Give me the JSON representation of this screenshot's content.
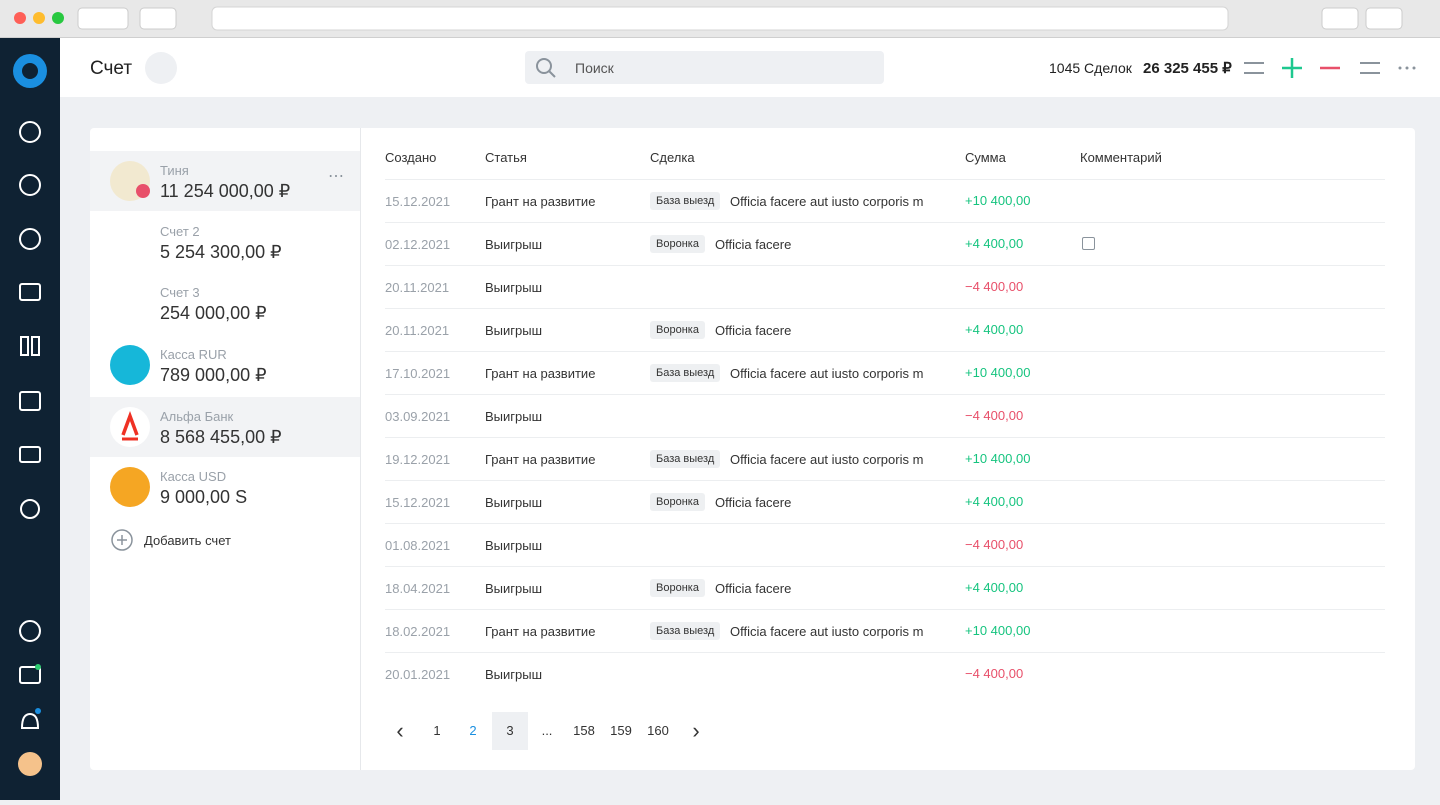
{
  "header": {
    "title": "Счет",
    "search_placeholder": "Поиск",
    "deals": "1045 Сделок",
    "total": "26 325 455 ₽"
  },
  "accounts": [
    {
      "name": "Тиня",
      "amount": "11 254 000,00 ₽"
    },
    {
      "name": "Счет 2",
      "amount": "5 254 300,00 ₽"
    },
    {
      "name": "Счет 3",
      "amount": "254 000,00 ₽"
    },
    {
      "name": "Касса RUR",
      "amount": "789 000,00 ₽"
    },
    {
      "name": "Альфа Банк",
      "amount": "8 568 455,00 ₽"
    },
    {
      "name": "Касса USD",
      "amount": "9 000,00 S"
    }
  ],
  "add_account": "Добавить счет",
  "table": {
    "columns": [
      "Создано",
      "Статья",
      "Сделка",
      "Сумма",
      "Комментарий"
    ],
    "rows": [
      {
        "date": "15.12.2021",
        "article": "Грант на развитие",
        "tag": "База выезд",
        "deal": "Officia facere aut iusto corporis m",
        "amount": "+10 400,00"
      },
      {
        "date": "02.12.2021",
        "article": "Выигрыш",
        "tag": "Воронка",
        "deal": "Officia facere",
        "amount": "+4 400,00"
      },
      {
        "date": "20.11.2021",
        "article": "Выигрыш",
        "amount": "−4 400,00"
      },
      {
        "date": "20.11.2021",
        "article": "Выигрыш",
        "tag": "Воронка",
        "deal": "Officia facere",
        "amount": "+4 400,00"
      },
      {
        "date": "17.10.2021",
        "article": "Грант на развитие",
        "tag": "База выезд",
        "deal": "Officia facere aut iusto corporis m",
        "amount": "+10 400,00"
      },
      {
        "date": "03.09.2021",
        "article": "Выигрыш",
        "amount": "−4 400,00"
      },
      {
        "date": "19.12.2021",
        "article": "Грант на развитие",
        "tag": "База выезд",
        "deal": "Officia facere aut iusto corporis m",
        "amount": "+10 400,00"
      },
      {
        "date": "15.12.2021",
        "article": "Выигрыш",
        "tag": "Воронка",
        "deal": "Officia facere",
        "amount": "+4 400,00"
      },
      {
        "date": "01.08.2021",
        "article": "Выигрыш",
        "amount": "−4 400,00"
      },
      {
        "date": "18.04.2021",
        "article": "Выигрыш",
        "tag": "Воронка",
        "deal": "Officia facere",
        "amount": "+4 400,00"
      },
      {
        "date": "18.02.2021",
        "article": "Грант на развитие",
        "tag": "База выезд",
        "deal": "Officia facere aut iusto corporis m",
        "amount": "+10 400,00"
      },
      {
        "date": "20.01.2021",
        "article": "Выигрыш",
        "amount": "−4 400,00"
      }
    ]
  },
  "pagination": [
    "1",
    "2",
    "3",
    "...",
    "158",
    "159",
    "160"
  ]
}
